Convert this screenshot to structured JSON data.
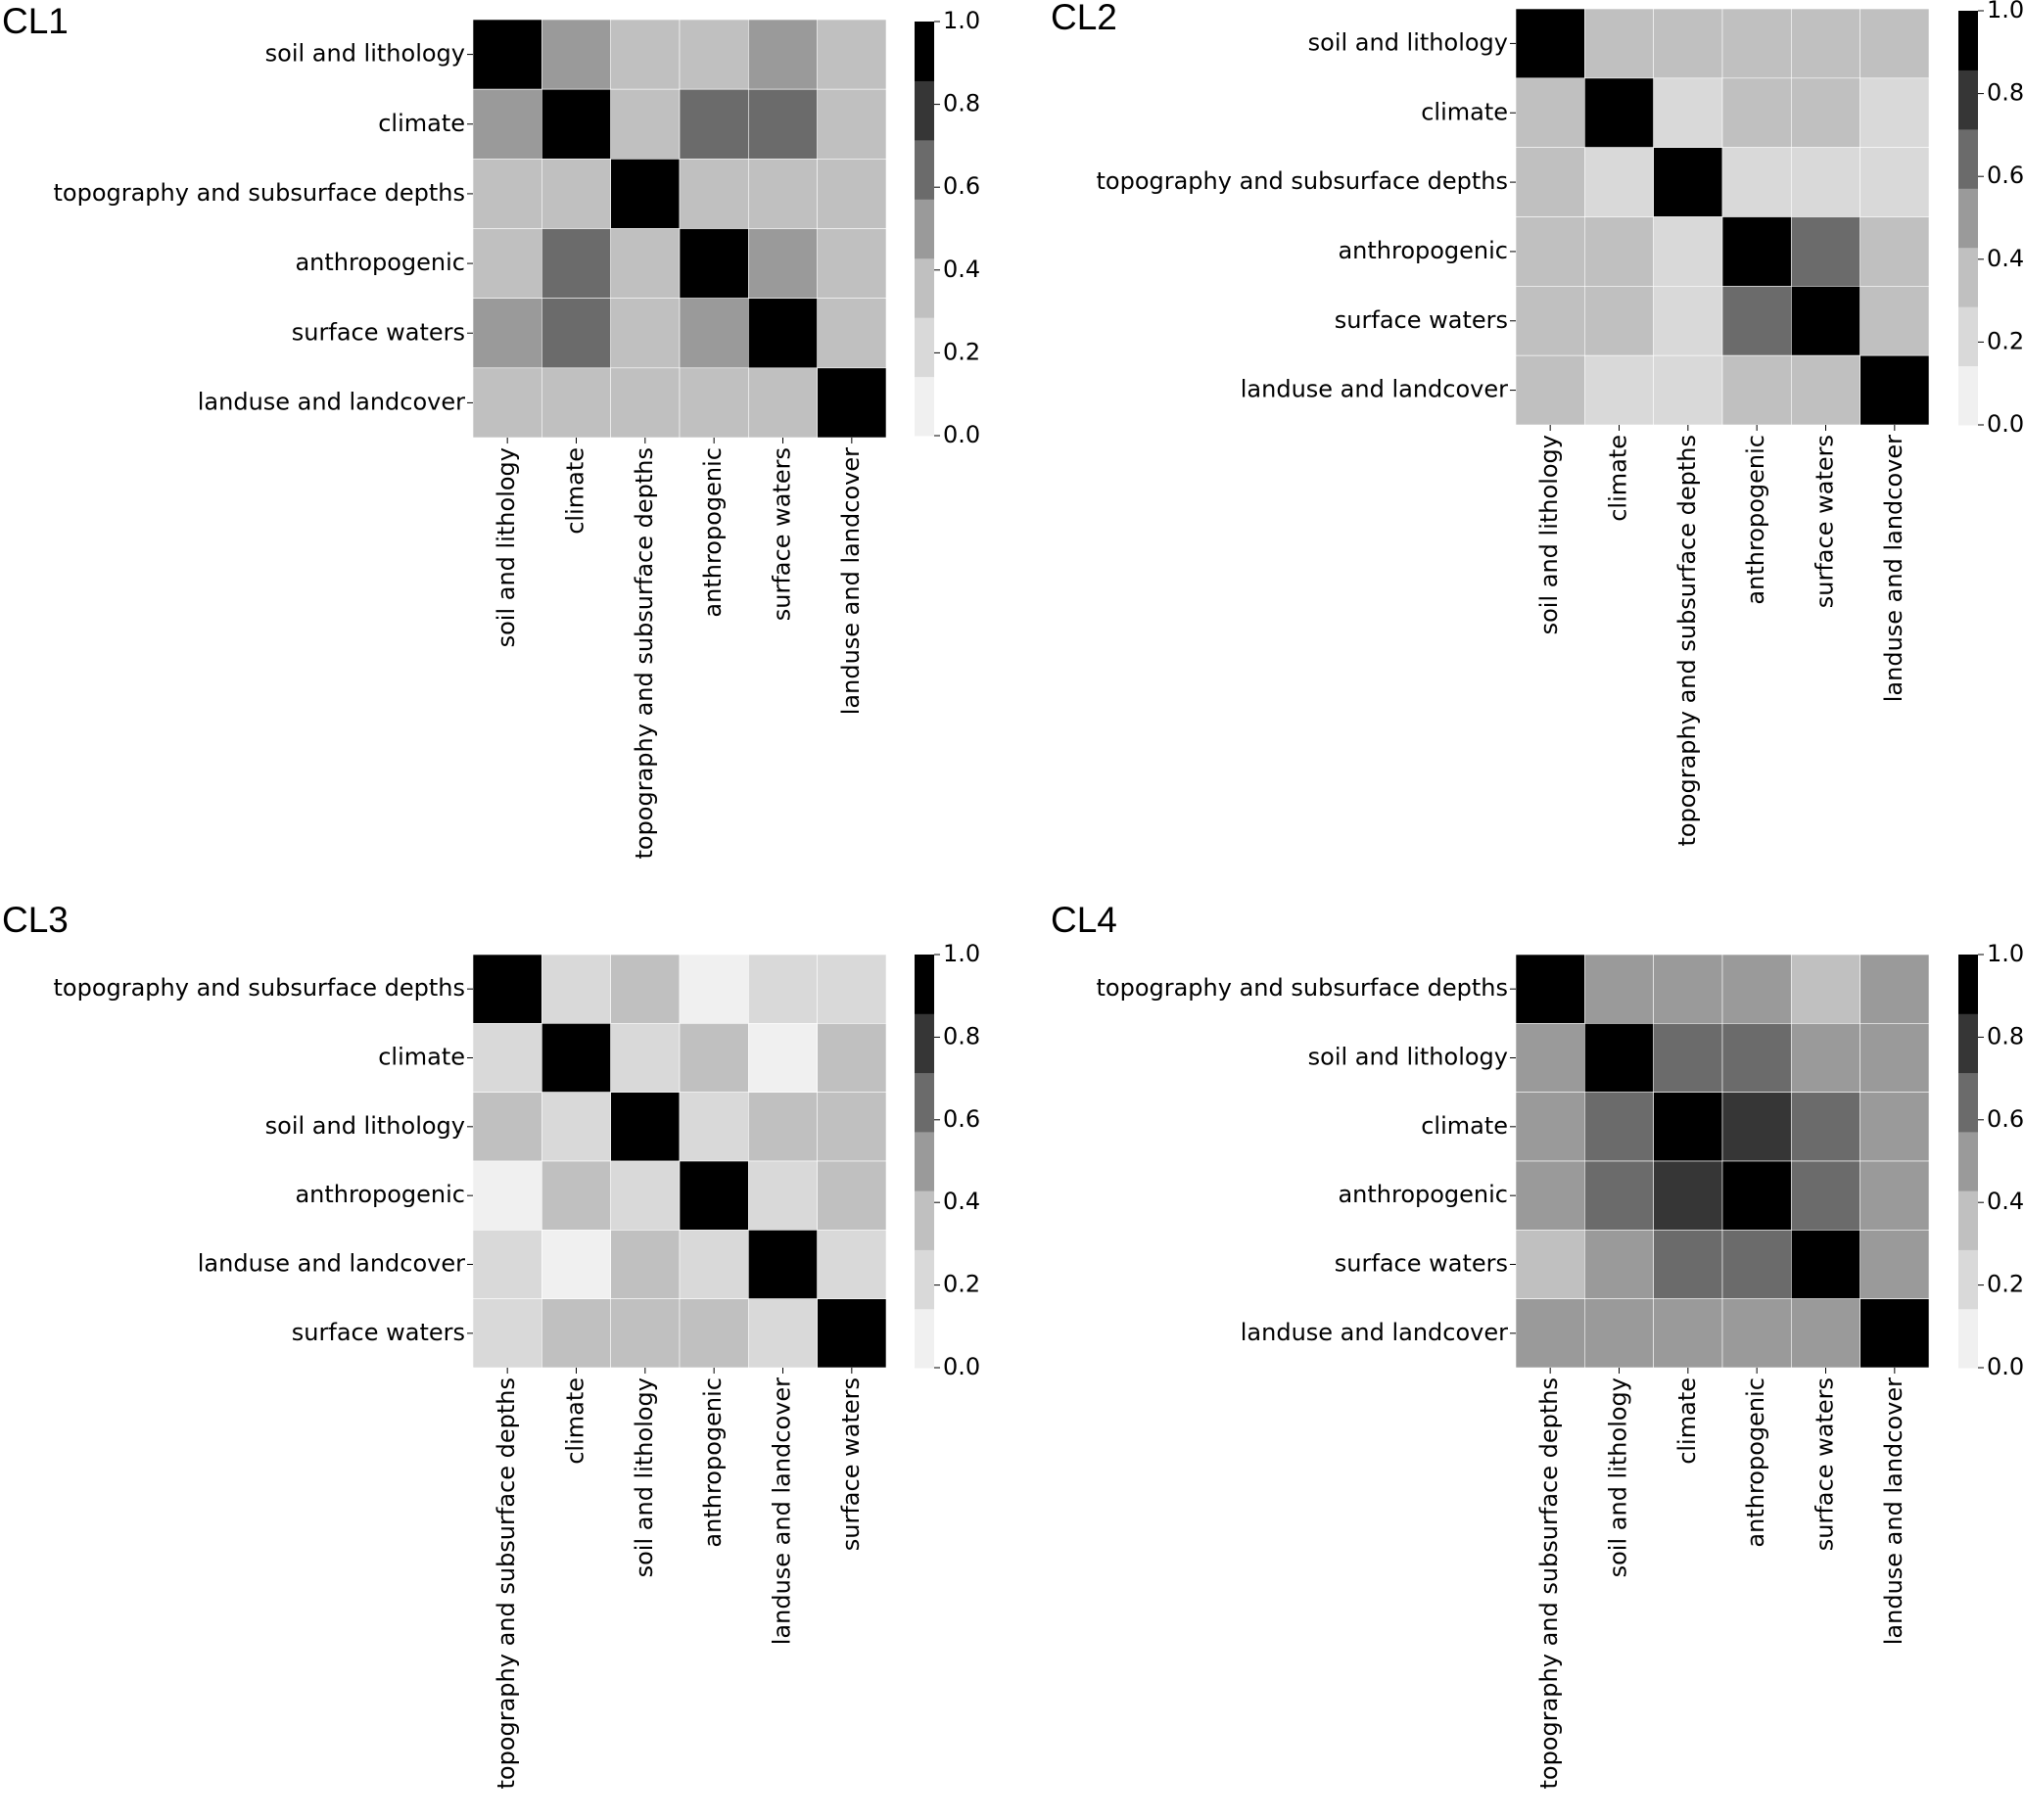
{
  "colors": {
    "scale": [
      "#f0f0f0",
      "#d9d9d9",
      "#c0c0c0",
      "#9a9a9a",
      "#6b6b6b",
      "#363636",
      "#000000"
    ],
    "below_scale": "#ffffff",
    "grid": "#ffffff",
    "text": "#000000"
  },
  "chart_data": [
    {
      "type": "heatmap",
      "title": "CL1",
      "labels": [
        "soil and lithology",
        "climate",
        "topography and subsurface depths",
        "anthropogenic",
        "surface waters",
        "landuse and landcover"
      ],
      "values": [
        [
          1.0,
          0.5,
          0.3,
          0.3,
          0.5,
          0.3
        ],
        [
          0.5,
          1.0,
          0.3,
          0.6,
          0.6,
          0.3
        ],
        [
          0.3,
          0.3,
          1.0,
          0.3,
          0.3,
          0.3
        ],
        [
          0.3,
          0.6,
          0.3,
          1.0,
          0.5,
          0.3
        ],
        [
          0.5,
          0.6,
          0.3,
          0.5,
          1.0,
          0.3
        ],
        [
          0.3,
          0.3,
          0.3,
          0.3,
          0.3,
          1.0
        ]
      ],
      "colorbar": {
        "range": [
          0.0,
          1.0
        ],
        "ticks": [
          "0.0",
          "0.2",
          "0.4",
          "0.6",
          "0.8",
          "1.0"
        ]
      }
    },
    {
      "type": "heatmap",
      "title": "CL2",
      "labels": [
        "soil and lithology",
        "climate",
        "topography and subsurface depths",
        "anthropogenic",
        "surface waters",
        "landuse and landcover"
      ],
      "values": [
        [
          1.0,
          0.3,
          0.3,
          0.3,
          0.3,
          0.3
        ],
        [
          0.3,
          1.0,
          0.2,
          0.3,
          0.3,
          0.2
        ],
        [
          0.3,
          0.2,
          1.0,
          0.2,
          0.2,
          0.2
        ],
        [
          0.3,
          0.3,
          0.2,
          1.0,
          0.6,
          0.3
        ],
        [
          0.3,
          0.3,
          0.2,
          0.6,
          1.0,
          0.3
        ],
        [
          0.3,
          0.2,
          0.2,
          0.3,
          0.3,
          1.0
        ]
      ],
      "colorbar": {
        "range": [
          0.0,
          1.0
        ],
        "ticks": [
          "0.0",
          "0.2",
          "0.4",
          "0.6",
          "0.8",
          "1.0"
        ]
      }
    },
    {
      "type": "heatmap",
      "title": "CL3",
      "labels": [
        "topography and subsurface depths",
        "climate",
        "soil and lithology",
        "anthropogenic",
        "landuse and landcover",
        "surface waters"
      ],
      "values": [
        [
          1.0,
          0.2,
          0.3,
          0.1,
          0.2,
          0.2
        ],
        [
          0.2,
          1.0,
          0.2,
          0.3,
          0.1,
          0.3
        ],
        [
          0.3,
          0.2,
          1.0,
          0.2,
          0.3,
          0.3
        ],
        [
          0.1,
          0.3,
          0.2,
          1.0,
          0.2,
          0.3
        ],
        [
          0.2,
          0.1,
          0.3,
          0.2,
          1.0,
          0.2
        ],
        [
          0.2,
          0.3,
          0.3,
          0.3,
          0.2,
          1.0
        ]
      ],
      "colorbar": {
        "range": [
          0.0,
          1.0
        ],
        "ticks": [
          "0.0",
          "0.2",
          "0.4",
          "0.6",
          "0.8",
          "1.0"
        ]
      }
    },
    {
      "type": "heatmap",
      "title": "CL4",
      "labels": [
        "topography and subsurface depths",
        "soil and lithology",
        "climate",
        "anthropogenic",
        "surface waters",
        "landuse and landcover"
      ],
      "values": [
        [
          1.0,
          0.5,
          0.5,
          0.5,
          0.3,
          0.5
        ],
        [
          0.5,
          1.0,
          0.6,
          0.6,
          0.5,
          0.5
        ],
        [
          0.5,
          0.6,
          1.0,
          0.8,
          0.6,
          0.5
        ],
        [
          0.5,
          0.6,
          0.8,
          1.0,
          0.6,
          0.5
        ],
        [
          0.3,
          0.5,
          0.6,
          0.6,
          1.0,
          0.5
        ],
        [
          0.5,
          0.5,
          0.5,
          0.5,
          0.5,
          1.0
        ]
      ],
      "colorbar": {
        "range": [
          0.0,
          1.0
        ],
        "ticks": [
          "0.0",
          "0.2",
          "0.4",
          "0.6",
          "0.8",
          "1.0"
        ]
      }
    }
  ]
}
